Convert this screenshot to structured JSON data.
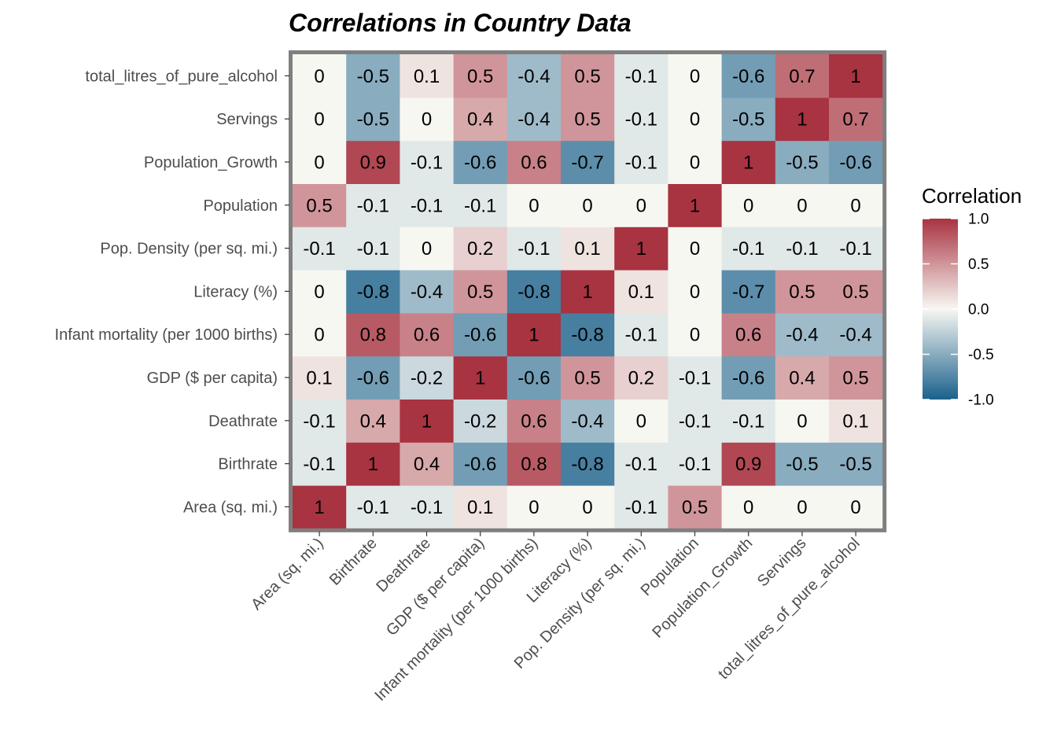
{
  "chart_data": {
    "type": "heatmap",
    "title": "Correlations in Country Data",
    "xlabel": "",
    "ylabel": "",
    "variables": [
      "Area (sq. mi.)",
      "Birthrate",
      "Deathrate",
      "GDP ($ per capita)",
      "Infant mortality (per 1000 births)",
      "Literacy (%)",
      "Pop. Density (per sq. mi.)",
      "Population",
      "Population_Growth",
      "Servings",
      "total_litres_of_pure_alcohol"
    ],
    "matrix": [
      [
        1,
        -0.1,
        -0.1,
        0.1,
        0,
        0,
        -0.1,
        0.5,
        0,
        0,
        0
      ],
      [
        -0.1,
        1,
        0.4,
        -0.6,
        0.8,
        -0.8,
        -0.1,
        -0.1,
        0.9,
        -0.5,
        -0.5
      ],
      [
        -0.1,
        0.4,
        1,
        -0.2,
        0.6,
        -0.4,
        0,
        -0.1,
        -0.1,
        0,
        0.1
      ],
      [
        0.1,
        -0.6,
        -0.2,
        1,
        -0.6,
        0.5,
        0.2,
        -0.1,
        -0.6,
        0.4,
        0.5
      ],
      [
        0,
        0.8,
        0.6,
        -0.6,
        1,
        -0.8,
        -0.1,
        0,
        0.6,
        -0.4,
        -0.4
      ],
      [
        0,
        -0.8,
        -0.4,
        0.5,
        -0.8,
        1,
        0.1,
        0,
        -0.7,
        0.5,
        0.5
      ],
      [
        -0.1,
        -0.1,
        0,
        0.2,
        -0.1,
        0.1,
        1,
        0,
        -0.1,
        -0.1,
        -0.1
      ],
      [
        0.5,
        -0.1,
        -0.1,
        -0.1,
        0,
        0,
        0,
        1,
        0,
        0,
        0
      ],
      [
        0,
        0.9,
        -0.1,
        -0.6,
        0.6,
        -0.7,
        -0.1,
        0,
        1,
        -0.5,
        -0.6
      ],
      [
        0,
        -0.5,
        0,
        0.4,
        -0.4,
        0.5,
        -0.1,
        0,
        -0.5,
        1,
        0.7
      ],
      [
        0,
        -0.5,
        0.1,
        0.5,
        -0.4,
        0.5,
        -0.1,
        0,
        -0.6,
        0.7,
        1
      ]
    ],
    "legend": {
      "title": "Correlation",
      "ticks": [
        "1.0",
        "0.5",
        "0.0",
        "-0.5",
        "-1.0"
      ],
      "range": [
        -1,
        1
      ],
      "placement": "right"
    },
    "colors": {
      "high": "#A83341",
      "mid": "#F7F7F2",
      "low": "#1A618C",
      "panel_border": "#7F7F7F"
    },
    "grid": false
  }
}
